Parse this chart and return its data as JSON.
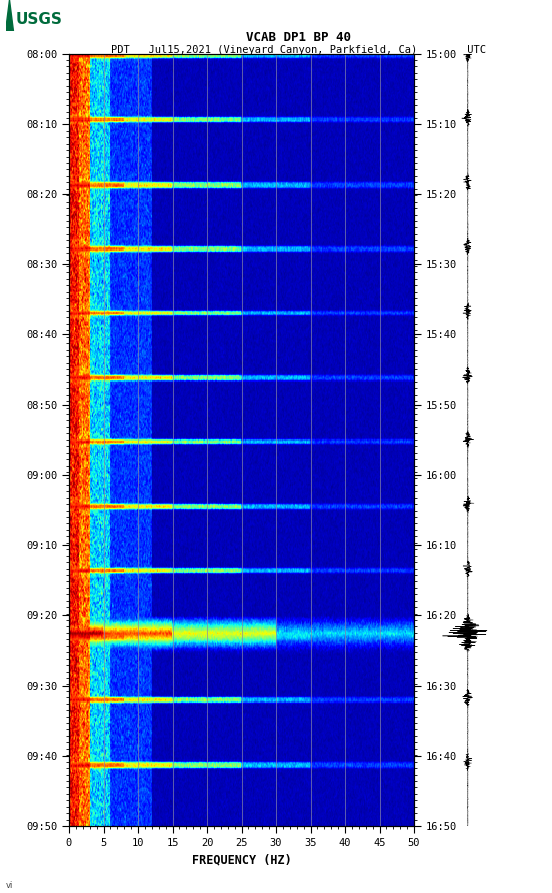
{
  "title_line1": "VCAB DP1 BP 40",
  "title_line2": "PDT   Jul15,2021 (Vineyard Canyon, Parkfield, Ca)        UTC",
  "xlabel": "FREQUENCY (HZ)",
  "freq_min": 0,
  "freq_max": 50,
  "freq_ticks": [
    0,
    5,
    10,
    15,
    20,
    25,
    30,
    35,
    40,
    45,
    50
  ],
  "time_left_labels": [
    "08:00",
    "08:10",
    "08:20",
    "08:30",
    "08:40",
    "08:50",
    "09:00",
    "09:10",
    "09:20",
    "09:30",
    "09:40",
    "09:50"
  ],
  "time_right_labels": [
    "15:00",
    "15:10",
    "15:20",
    "15:30",
    "15:40",
    "15:50",
    "16:00",
    "16:10",
    "16:20",
    "16:30",
    "16:40",
    "16:50"
  ],
  "n_time_steps": 720,
  "n_freq_steps": 500,
  "background_color": "#ffffff",
  "usgs_green": "#006B3C",
  "fig_width": 5.52,
  "fig_height": 8.93,
  "dpi": 100,
  "vline_color": "#8888aa",
  "vline_freqs": [
    5,
    10,
    15,
    20,
    25,
    30,
    35,
    40,
    45
  ],
  "event_rows": [
    0,
    60,
    120,
    180,
    240,
    300,
    360,
    420,
    480,
    540,
    600,
    660
  ],
  "large_event_row": 540
}
